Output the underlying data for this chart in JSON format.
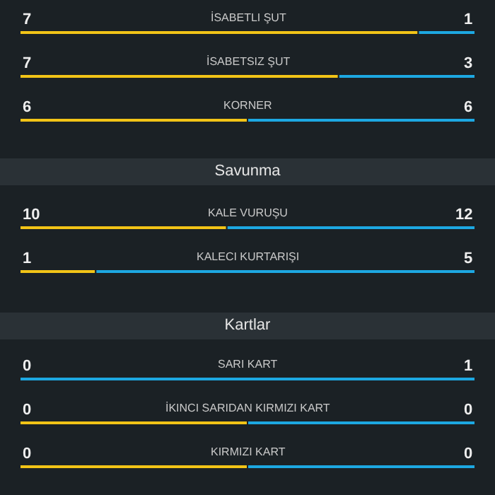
{
  "chart_data": [
    {
      "type": "other",
      "data_labels": true,
      "categories": [
        "İSABETLI ŞUT",
        "İSABETSIZ ŞUT",
        "KORNER"
      ],
      "series": [
        {
          "color": "#f2c417",
          "values": [
            7,
            7,
            6
          ]
        },
        {
          "color": "#1da8e2",
          "values": [
            1,
            3,
            6
          ]
        }
      ]
    },
    {
      "type": "other",
      "data_labels": true,
      "title": "Savunma",
      "categories": [
        "KALE VURUŞU",
        "KALECI KURTARIŞI"
      ],
      "series": [
        {
          "color": "#f2c417",
          "values": [
            10,
            1
          ]
        },
        {
          "color": "#1da8e2",
          "values": [
            12,
            5
          ]
        }
      ]
    },
    {
      "type": "other",
      "data_labels": true,
      "title": "Kartlar",
      "categories": [
        "SARI KART",
        "İKINCI SARIDAN KIRMIZI KART",
        "KIRMIZI KART"
      ],
      "series": [
        {
          "color": "#f2c417",
          "values": [
            0,
            0,
            0
          ]
        },
        {
          "color": "#1da8e2",
          "values": [
            1,
            0,
            0
          ]
        }
      ]
    }
  ]
}
